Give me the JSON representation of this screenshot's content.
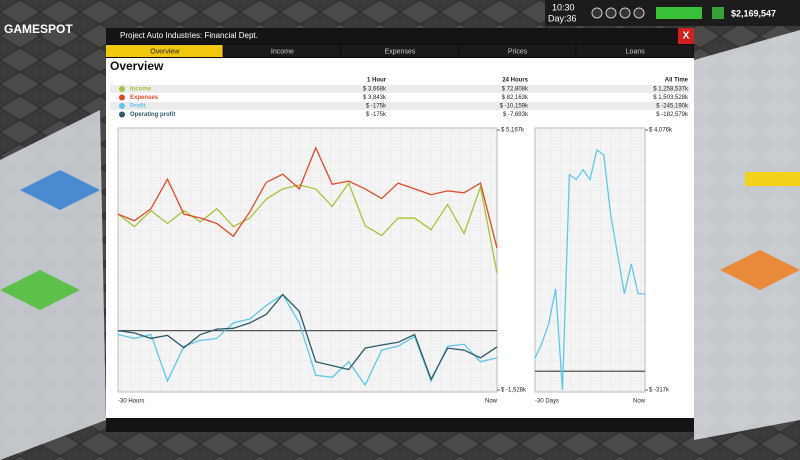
{
  "hud": {
    "time": "10:30",
    "day": "Day:36",
    "money": "$2,169,547",
    "watermark": "GAMESPOT"
  },
  "window": {
    "title": "Project Auto Industries: Financial Dept.",
    "close": "X",
    "tabs": [
      "Overview",
      "Income",
      "Expenses",
      "Prices",
      "Loans"
    ],
    "heading": "Overview",
    "table": {
      "headers": [
        "1 Hour",
        "24 Hours",
        "All Time"
      ],
      "rows": [
        {
          "name": "Income",
          "color": "#a6c23a",
          "values": [
            "$ 3,668k",
            "$ 72,808k",
            "$ 1,258,537k"
          ]
        },
        {
          "name": "Expenses",
          "color": "#e04a2a",
          "values": [
            "$ 3,843k",
            "$ 82,163k",
            "$ 1,503,528k"
          ]
        },
        {
          "name": "Profit",
          "color": "#5ec8e8",
          "values": [
            "$ -175k",
            "$ -10,159k",
            "$ -245,190k"
          ]
        },
        {
          "name": "Operating profit",
          "color": "#2e5a6a",
          "values": [
            "$ -175k",
            "$ -7,693k",
            "$ -182,579k"
          ]
        }
      ]
    },
    "charts": [
      {
        "type": "line",
        "ylim": [
          -1528,
          5167
        ],
        "yticks": [
          {
            "value": 5167,
            "label": "$ 5,167k"
          },
          {
            "value": -1528,
            "label": "$ -1,528k"
          }
        ],
        "x_labels": [
          "-30 Hours",
          "Now"
        ],
        "series": [
          {
            "color": "#a6c23a",
            "values": [
              3000,
              2680,
              3090,
              2760,
              3090,
              2800,
              3140,
              2680,
              2900,
              3390,
              3650,
              3750,
              3650,
              3200,
              3800,
              2700,
              2450,
              2900,
              2900,
              2600,
              3250,
              2500,
              3700,
              1480
            ]
          },
          {
            "color": "#e04a2a",
            "values": [
              3000,
              2830,
              3140,
              3900,
              3000,
              2900,
              2760,
              2430,
              3060,
              3820,
              4030,
              3650,
              4710,
              3770,
              3850,
              3650,
              3400,
              3800,
              3650,
              3500,
              3600,
              3550,
              3800,
              2124
            ]
          },
          {
            "color": "#5ec8e8",
            "values": [
              -100,
              -200,
              -100,
              -1300,
              -400,
              -250,
              -200,
              200,
              300,
              650,
              930,
              200,
              -1150,
              -1200,
              -800,
              -1400,
              -500,
              -400,
              -150,
              -1300,
              -400,
              -350,
              -800,
              -700
            ]
          },
          {
            "color": "#2e5a6a",
            "values": [
              0,
              -60,
              -200,
              -120,
              -440,
              -100,
              40,
              60,
              200,
              420,
              930,
              500,
              -800,
              -900,
              -1000,
              -450,
              -370,
              -300,
              -100,
              -1250,
              -450,
              -500,
              -700,
              -420
            ]
          }
        ]
      },
      {
        "type": "line",
        "ylim": [
          -317,
          4076
        ],
        "yticks": [
          {
            "value": 4076,
            "label": "$ 4,076k"
          },
          {
            "value": -317,
            "label": "$ -317k"
          }
        ],
        "x_labels": [
          "-30 Days",
          "Now"
        ],
        "series": [
          {
            "color": "#5ec8e8",
            "values": [
              219,
              470,
              806,
              1393,
              -317,
              3321,
              3238,
              3405,
              3238,
              3741,
              3657,
              2651,
              1980,
              1309,
              1812,
              1309,
              1309
            ]
          }
        ]
      }
    ]
  }
}
